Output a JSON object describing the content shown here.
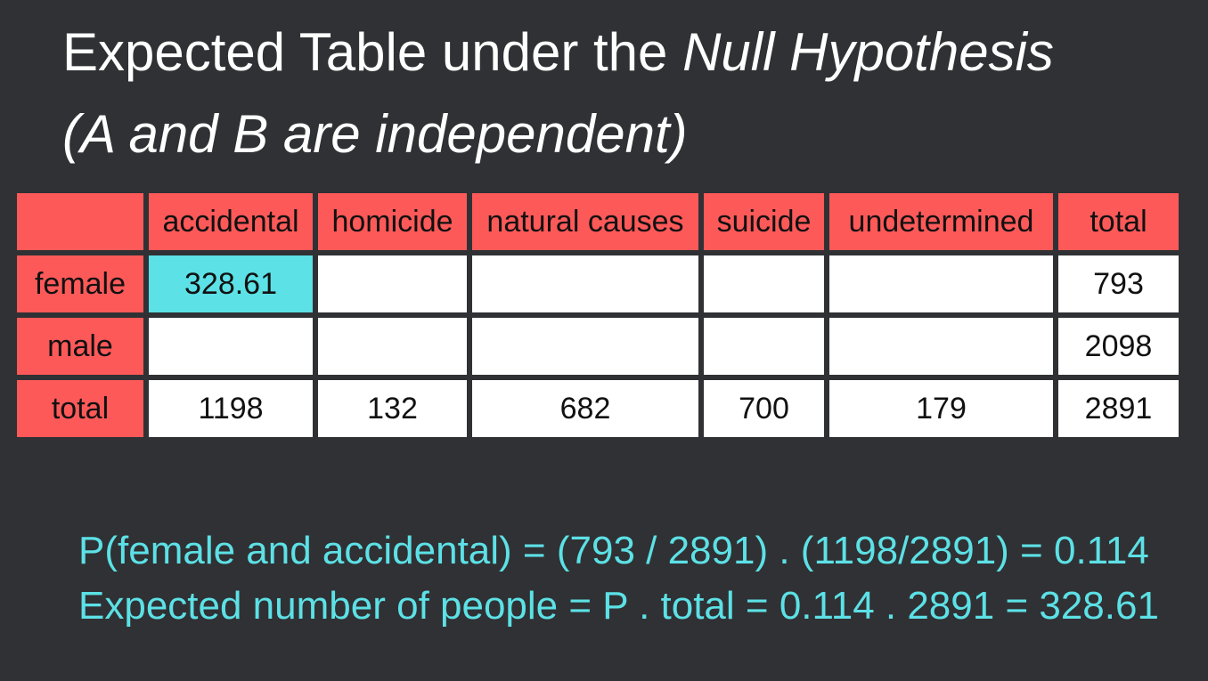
{
  "title": {
    "line1_plain": "Expected Table under the ",
    "line1_italic": "Null Hypothesis",
    "line2_italic": "(A and B are independent)"
  },
  "table": {
    "columns": [
      "",
      "accidental",
      "homicide",
      "natural causes",
      "suicide",
      "undetermined",
      "total"
    ],
    "rows": [
      {
        "label": "female",
        "cells": [
          "328.61",
          "",
          "",
          "",
          "",
          "793"
        ]
      },
      {
        "label": "male",
        "cells": [
          "",
          "",
          "",
          "",
          "",
          "2098"
        ]
      },
      {
        "label": "total",
        "cells": [
          "1198",
          "132",
          "682",
          "700",
          "179",
          "2891"
        ]
      }
    ],
    "highlight_color": "#5ce1e6",
    "header_color": "#fe5959"
  },
  "formulas": {
    "line1": "P(female and accidental) = (793 / 2891) . (1198/2891) = 0.114",
    "line2": "Expected number of people = P . total = 0.114 . 2891 = 328.61"
  }
}
